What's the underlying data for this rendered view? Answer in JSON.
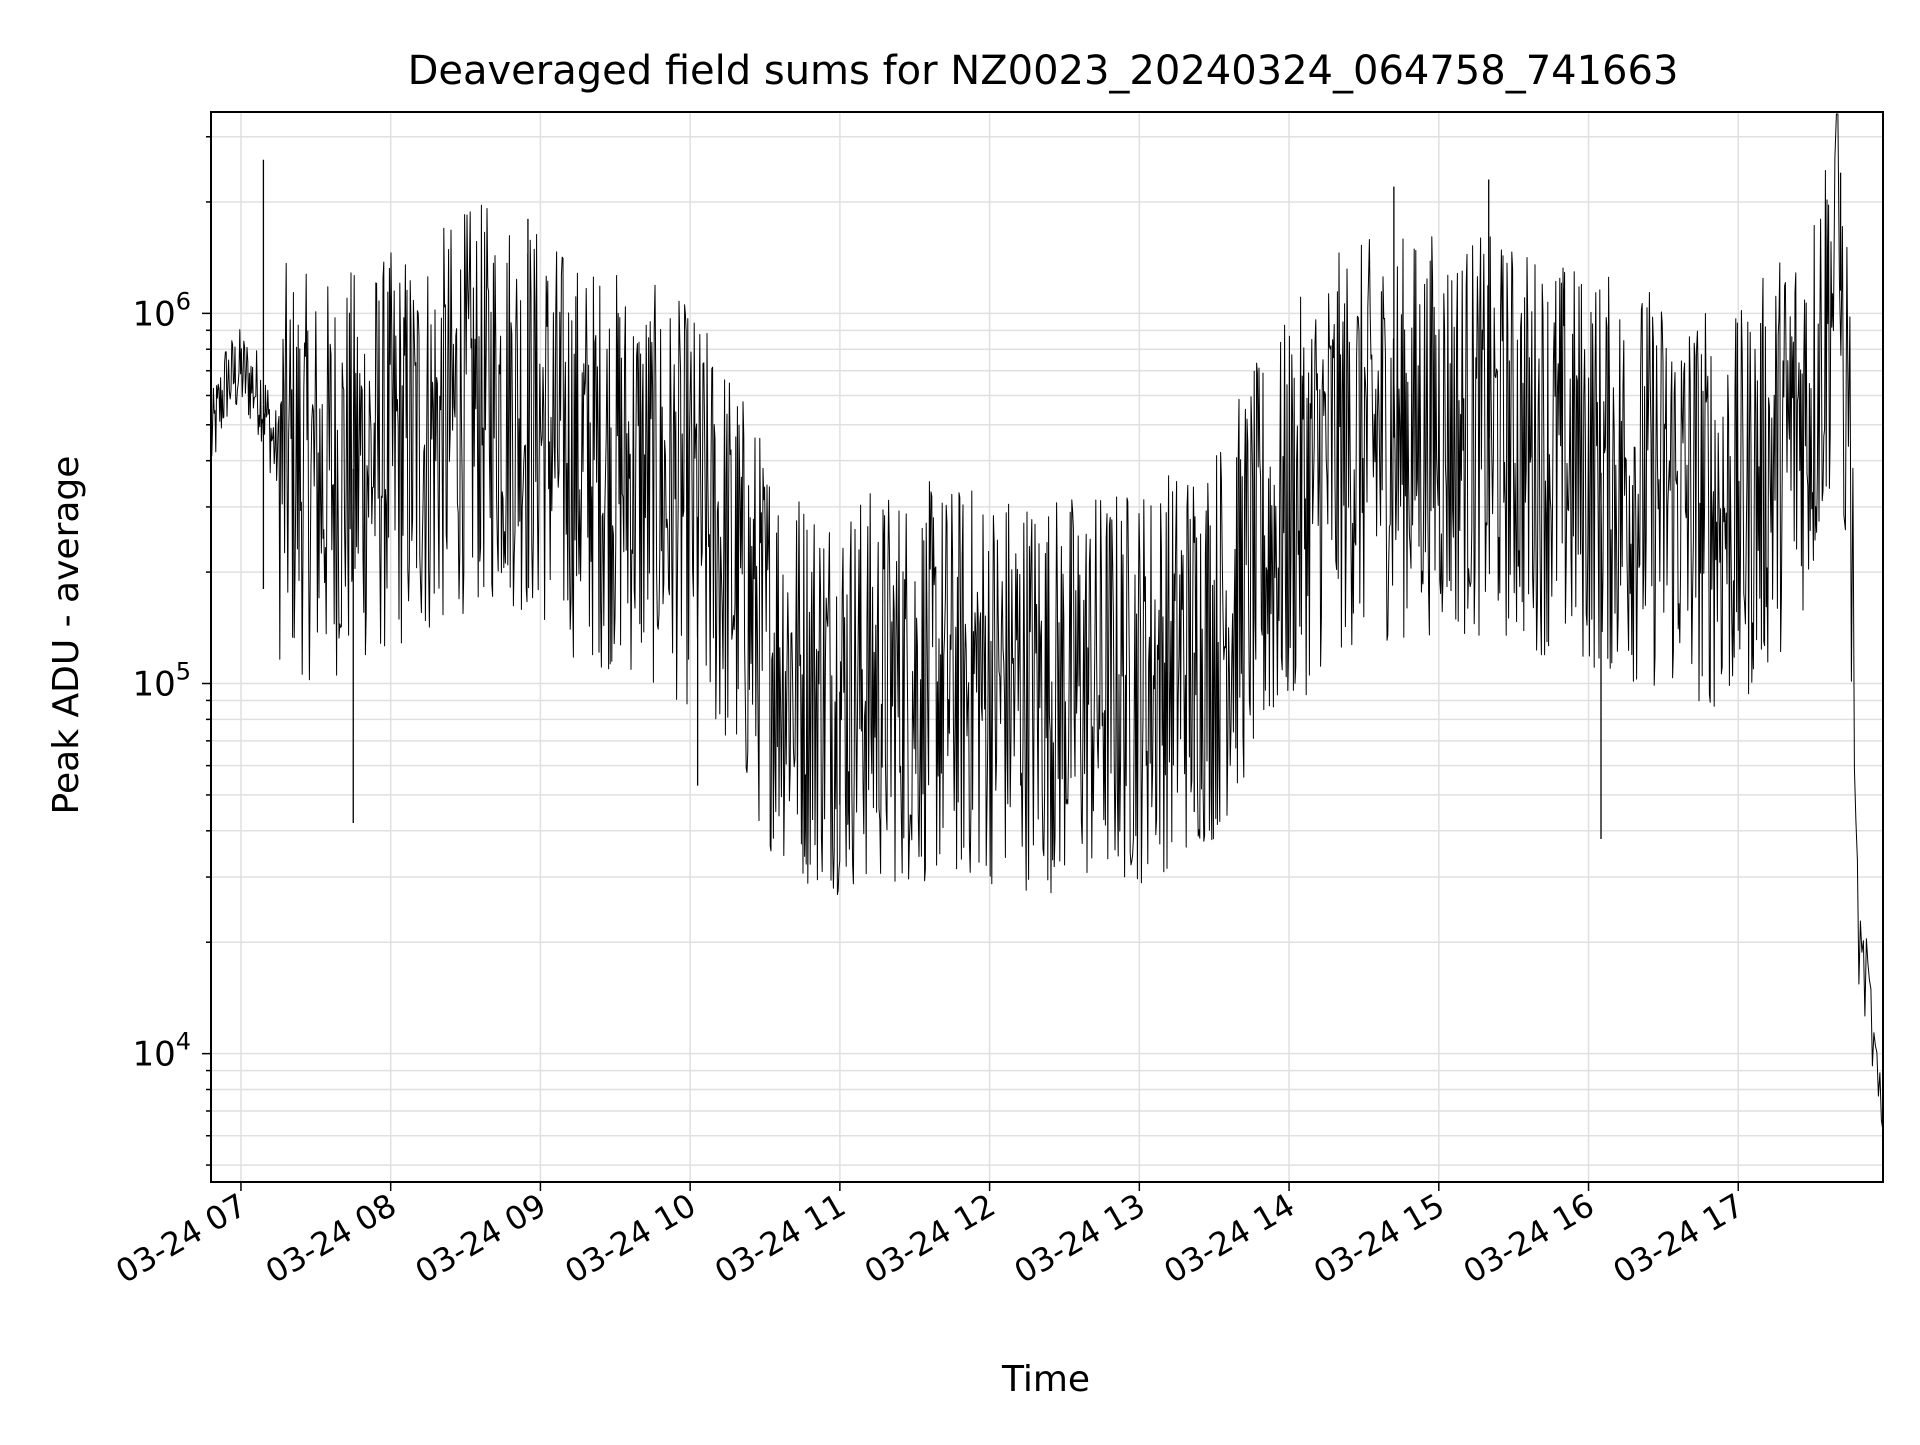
{
  "chart_data": {
    "type": "line",
    "title": "Deaveraged field sums for NZ0023_20240324_064758_741663",
    "xlabel": "Time",
    "ylabel": "Peak ADU - average",
    "y_scale": "log",
    "grid": true,
    "grid_minor": true,
    "legend": "none",
    "colors": {
      "line": "#000000",
      "grid": "#e0e0e0",
      "axes": "#000000"
    },
    "xlim": [
      "2024-03-24 06:48",
      "2024-03-24 17:58"
    ],
    "ylim": [
      4500,
      3500000
    ],
    "x_ticks": [
      {
        "value": "2024-03-24 07:00",
        "label": "03-24 07"
      },
      {
        "value": "2024-03-24 08:00",
        "label": "03-24 08"
      },
      {
        "value": "2024-03-24 09:00",
        "label": "03-24 09"
      },
      {
        "value": "2024-03-24 10:00",
        "label": "03-24 10"
      },
      {
        "value": "2024-03-24 11:00",
        "label": "03-24 11"
      },
      {
        "value": "2024-03-24 12:00",
        "label": "03-24 12"
      },
      {
        "value": "2024-03-24 13:00",
        "label": "03-24 13"
      },
      {
        "value": "2024-03-24 14:00",
        "label": "03-24 14"
      },
      {
        "value": "2024-03-24 15:00",
        "label": "03-24 15"
      },
      {
        "value": "2024-03-24 16:00",
        "label": "03-24 16"
      },
      {
        "value": "2024-03-24 17:00",
        "label": "03-24 17"
      }
    ],
    "y_ticks": [
      {
        "value": 10000,
        "base": "10",
        "exp": "4"
      },
      {
        "value": 100000,
        "base": "10",
        "exp": "5"
      },
      {
        "value": 1000000,
        "base": "10",
        "exp": "6"
      }
    ],
    "series": [
      {
        "points": [
          [
            "2024-03-24 06:48",
            450000
          ],
          [
            "2024-03-24 06:54",
            650000
          ],
          [
            "2024-03-24 07:00",
            700000
          ],
          [
            "2024-03-24 07:08",
            600000
          ],
          [
            "2024-03-24 07:15",
            400000
          ],
          [
            "2024-03-24 07:30",
            350000
          ],
          [
            "2024-03-24 07:45",
            380000
          ],
          [
            "2024-03-24 08:00",
            420000
          ],
          [
            "2024-03-24 08:15",
            450000
          ],
          [
            "2024-03-24 08:30",
            550000
          ],
          [
            "2024-03-24 08:45",
            580000
          ],
          [
            "2024-03-24 09:00",
            500000
          ],
          [
            "2024-03-24 09:15",
            400000
          ],
          [
            "2024-03-24 09:30",
            380000
          ],
          [
            "2024-03-24 09:45",
            340000
          ],
          [
            "2024-03-24 10:00",
            300000
          ],
          [
            "2024-03-24 10:15",
            220000
          ],
          [
            "2024-03-24 10:30",
            130000
          ],
          [
            "2024-03-24 10:45",
            100000
          ],
          [
            "2024-03-24 11:00",
            95000
          ],
          [
            "2024-03-24 11:30",
            100000
          ],
          [
            "2024-03-24 12:00",
            100000
          ],
          [
            "2024-03-24 12:30",
            95000
          ],
          [
            "2024-03-24 13:00",
            100000
          ],
          [
            "2024-03-24 13:30",
            130000
          ],
          [
            "2024-03-24 13:45",
            200000
          ],
          [
            "2024-03-24 14:00",
            280000
          ],
          [
            "2024-03-24 14:15",
            400000
          ],
          [
            "2024-03-24 14:30",
            450000
          ],
          [
            "2024-03-24 15:00",
            480000
          ],
          [
            "2024-03-24 15:30",
            450000
          ],
          [
            "2024-03-24 16:00",
            380000
          ],
          [
            "2024-03-24 16:30",
            330000
          ],
          [
            "2024-03-24 17:00",
            280000
          ],
          [
            "2024-03-24 17:30",
            600000
          ],
          [
            "2024-03-24 17:40",
            1500000
          ],
          [
            "2024-03-24 17:45",
            400000
          ],
          [
            "2024-03-24 17:48",
            20000
          ],
          [
            "2024-03-24 17:52",
            15000
          ],
          [
            "2024-03-24 17:58",
            5500
          ]
        ],
        "spikes": [
          [
            "2024-03-24 07:09",
            2600000
          ],
          [
            "2024-03-24 07:09",
            180000
          ],
          [
            "2024-03-24 07:45",
            42000
          ],
          [
            "2024-03-24 08:55",
            1800000
          ],
          [
            "2024-03-24 10:03",
            53000
          ],
          [
            "2024-03-24 11:00",
            47000
          ],
          [
            "2024-03-24 13:22",
            45000
          ],
          [
            "2024-03-24 14:42",
            2200000
          ],
          [
            "2024-03-24 15:20",
            2300000
          ],
          [
            "2024-03-24 16:05",
            38000
          ],
          [
            "2024-03-24 17:41",
            2400000
          ]
        ]
      }
    ]
  }
}
